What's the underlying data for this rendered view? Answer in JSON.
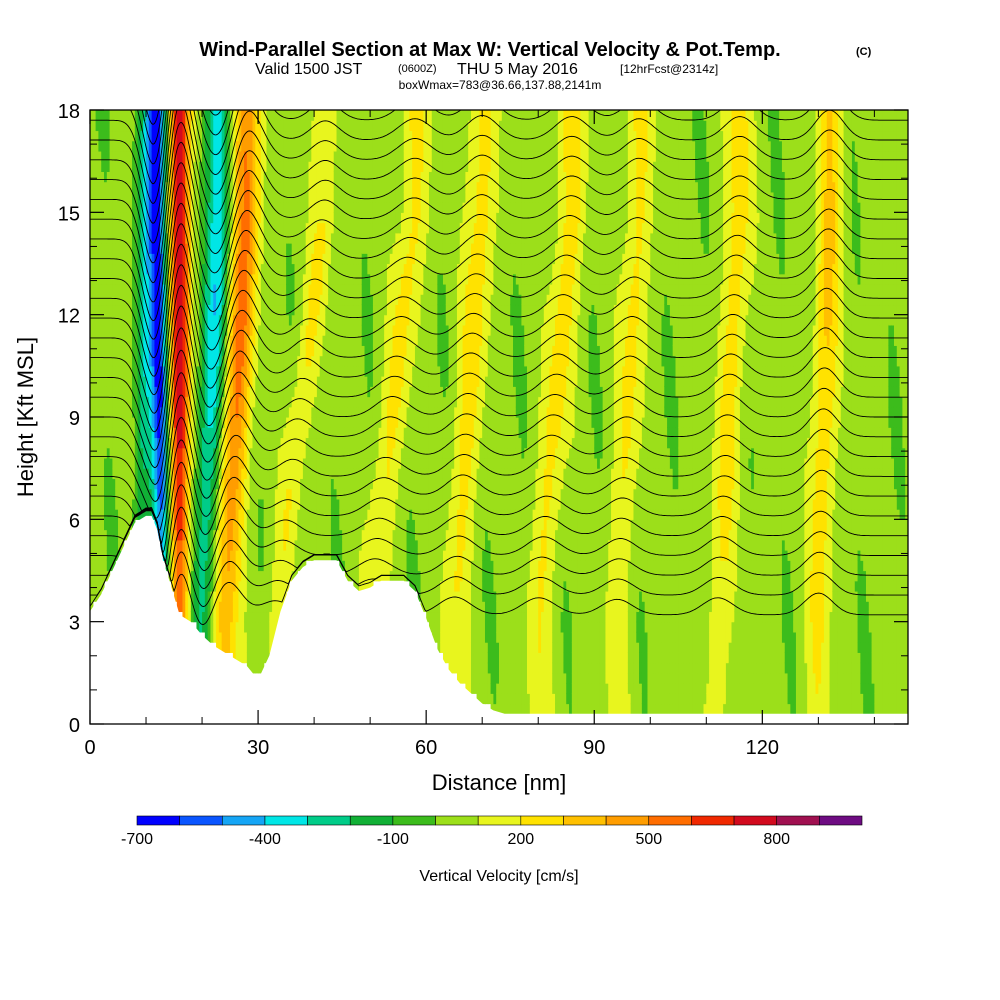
{
  "header": {
    "title": "Wind-Parallel Section at Max W: Vertical Velocity & Pot.Temp.",
    "copyright": "(C)",
    "valid_prefix": "Valid 1500 JST",
    "valid_utc": "(0600Z)",
    "valid_date": "THU 5 May 2016",
    "forecast": "[12hrFcst@2314z]",
    "boxinfo": "boxWmax=783@36.66,137.88,2141m"
  },
  "chart_data": {
    "type": "heatmap",
    "title": "Wind-Parallel Section at Max W: Vertical Velocity & Pot.Temp.",
    "xlabel": "Distance [nm]",
    "ylabel": "Height [Kft MSL]",
    "xlim": [
      0,
      146
    ],
    "ylim": [
      0,
      18
    ],
    "xticks": [
      0,
      30,
      60,
      90,
      120
    ],
    "yticks": [
      0,
      3,
      6,
      9,
      12,
      15,
      18
    ],
    "xtick_labels": [
      "0",
      "30",
      "60",
      "90",
      "120"
    ],
    "ytick_labels": [
      "0",
      "3",
      "6",
      "9",
      "12",
      "15",
      "18"
    ],
    "colorbar": {
      "label": "Vertical Velocity [cm/s]",
      "levels": [
        -700,
        -600,
        -500,
        -400,
        -300,
        -200,
        -100,
        0,
        100,
        200,
        300,
        400,
        500,
        600,
        700,
        800,
        900,
        1000
      ],
      "tick_values": [
        -700,
        -400,
        -100,
        200,
        500,
        800
      ],
      "tick_labels": [
        "-700",
        "-400",
        "-100",
        "200",
        "500",
        "800"
      ],
      "colors": [
        "#0000ff",
        "#0a55ff",
        "#15a5f5",
        "#00e6e6",
        "#00cc88",
        "#11b036",
        "#3cbc1c",
        "#9cdf1a",
        "#e8f51e",
        "#ffe200",
        "#ffc000",
        "#ff9d00",
        "#ff6d00",
        "#f02800",
        "#d20a1e",
        "#a01050",
        "#6e0c82"
      ]
    },
    "terrain": {
      "x": [
        0,
        2,
        4,
        6,
        8,
        10,
        11,
        12,
        13,
        14,
        16,
        18,
        20,
        22,
        24,
        26,
        28,
        30,
        32,
        34,
        36,
        38,
        40,
        42,
        44,
        46,
        48,
        50,
        52,
        54,
        56,
        58,
        60,
        62,
        64,
        66,
        68,
        70,
        72,
        74,
        76,
        146
      ],
      "height": [
        3.3,
        3.8,
        4.5,
        5.2,
        5.9,
        6.1,
        6.1,
        5.7,
        4.8,
        4.3,
        3.2,
        3.0,
        2.6,
        2.3,
        2.1,
        1.9,
        1.7,
        1.3,
        2.0,
        3.3,
        4.2,
        4.6,
        4.8,
        4.8,
        4.8,
        4.2,
        3.9,
        4.0,
        4.2,
        4.2,
        4.2,
        3.9,
        3.1,
        2.2,
        1.6,
        1.2,
        0.9,
        0.6,
        0.4,
        0.3,
        0.3,
        0.3
      ]
    },
    "updraft_bands": [
      {
        "name": "updraft-1",
        "x_top": 16,
        "x_base": 16,
        "peak_cm_s": 783,
        "half_width": 1.8
      },
      {
        "name": "updraft-2",
        "x_top": 28,
        "x_base": 24,
        "peak_cm_s": 500,
        "half_width": 2.4
      },
      {
        "name": "updraft-3",
        "x_top": 42,
        "x_base": 33,
        "peak_cm_s": 180,
        "half_width": 2.2
      },
      {
        "name": "updraft-4",
        "x_top": 58,
        "x_base": 50,
        "peak_cm_s": 200,
        "half_width": 2.6
      },
      {
        "name": "updraft-5",
        "x_top": 70,
        "x_base": 65,
        "peak_cm_s": 230,
        "half_width": 2.5
      },
      {
        "name": "updraft-6",
        "x_top": 86,
        "x_base": 80,
        "peak_cm_s": 220,
        "half_width": 2.6
      },
      {
        "name": "updraft-7",
        "x_top": 98,
        "x_base": 94,
        "peak_cm_s": 200,
        "half_width": 2.4
      },
      {
        "name": "updraft-8",
        "x_top": 116,
        "x_base": 112,
        "peak_cm_s": 220,
        "half_width": 2.4
      },
      {
        "name": "updraft-9",
        "x_top": 132,
        "x_base": 130,
        "peak_cm_s": 280,
        "half_width": 2.2
      }
    ],
    "downdraft_bands": [
      {
        "name": "downdraft-1",
        "x_top": 12,
        "x_base": 13,
        "min_cm_s": -700,
        "half_width": 1.6
      },
      {
        "name": "downdraft-2",
        "x_top": 23,
        "x_base": 20,
        "min_cm_s": -400,
        "half_width": 2.2
      },
      {
        "name": "downdraft-3",
        "x_top": 10,
        "x_base": 9,
        "min_cm_s": -250,
        "half_width": 1.5
      }
    ],
    "isentropes": {
      "count": 30,
      "base_height": 3.2,
      "spacing": 0.58,
      "wave_amplitude_scale": 1.0
    }
  }
}
